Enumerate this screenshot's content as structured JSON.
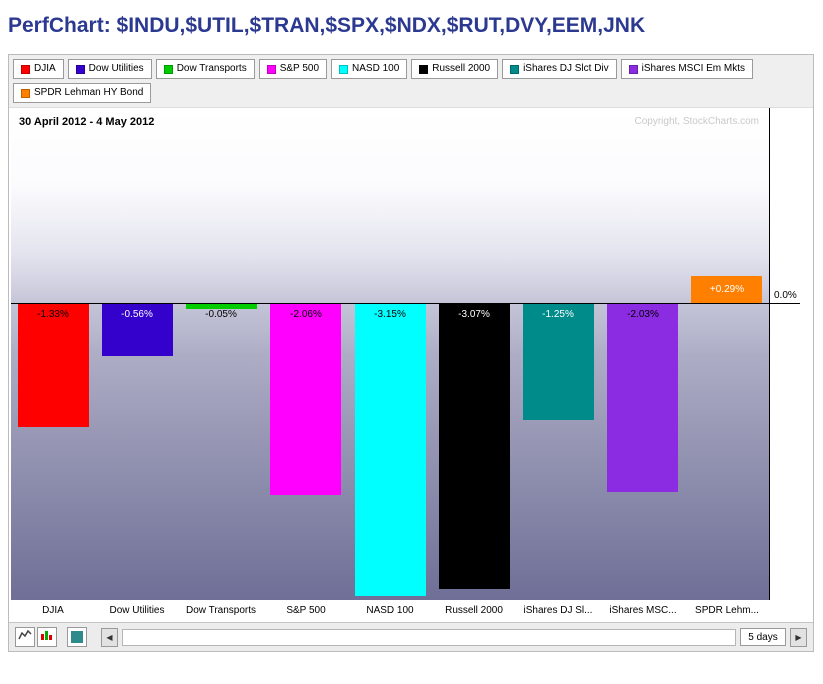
{
  "title": "PerfChart: $INDU,$UTIL,$TRAN,$SPX,$NDX,$RUT,DVY,EEM,JNK",
  "legend": {
    "items": [
      {
        "label": "DJIA",
        "color": "#FF0000"
      },
      {
        "label": "Dow Utilities",
        "color": "#3300CC"
      },
      {
        "label": "Dow Transports",
        "color": "#00CC00"
      },
      {
        "label": "S&P 500",
        "color": "#FF00FF"
      },
      {
        "label": "NASD 100",
        "color": "#00FFFF"
      },
      {
        "label": "Russell 2000",
        "color": "#000000"
      },
      {
        "label": "iShares DJ Slct Div",
        "color": "#008B8B"
      },
      {
        "label": "iShares MSCI Em Mkts",
        "color": "#8B2BE2"
      },
      {
        "label": "SPDR Lehman HY Bond",
        "color": "#FF8000"
      }
    ]
  },
  "chart": {
    "date_range": "30 April 2012 - 4 May 2012",
    "copyright": "Copyright, StockCharts.com",
    "zero_label": "0.0%"
  },
  "chart_data": {
    "type": "bar",
    "title": "PerfChart: $INDU,$UTIL,$TRAN,$SPX,$NDX,$RUT,DVY,EEM,JNK",
    "categories": [
      "DJIA",
      "Dow Utilities",
      "Dow Transports",
      "S&P 500",
      "NASD 100",
      "Russell 2000",
      "iShares DJ Slct Div",
      "iShares MSCI Em Mkts",
      "SPDR Lehman HY Bond"
    ],
    "x_tick_labels": [
      "DJIA",
      "Dow Utilities",
      "Dow Transports",
      "S&P 500",
      "NASD 100",
      "Russell 2000",
      "iShares DJ Sl...",
      "iShares MSC...",
      "SPDR Lehm..."
    ],
    "values": [
      -1.33,
      -0.56,
      -0.05,
      -2.06,
      -3.15,
      -3.07,
      -1.25,
      -2.03,
      0.29
    ],
    "value_labels": [
      "-1.33%",
      "-0.56%",
      "-0.05%",
      "-2.06%",
      "-3.15%",
      "-3.07%",
      "-1.25%",
      "-2.03%",
      "+0.29%"
    ],
    "colors": [
      "#FF0000",
      "#3300CC",
      "#00CC00",
      "#FF00FF",
      "#00FFFF",
      "#000000",
      "#008B8B",
      "#8B2BE2",
      "#FF8000"
    ],
    "label_text_colors": [
      "#000000",
      "#FFFFFF",
      "#000000",
      "#000000",
      "#000000",
      "#FFFFFF",
      "#FFFFFF",
      "#000000",
      "#FFFFFF"
    ],
    "ylabel": "",
    "xlabel": "",
    "ylim": [
      -3.2,
      2.1
    ],
    "zero_gridline_label": "0.0%",
    "grid": false,
    "legend_position": "top"
  },
  "toolbar": {
    "period_label": "5 days",
    "icons": [
      {
        "name": "line-view-icon"
      },
      {
        "name": "histogram-view-icon"
      },
      {
        "name": "color-swatch-icon",
        "color": "#2E8B8B"
      },
      {
        "name": "scroll-left-icon",
        "glyph": "◀"
      },
      {
        "name": "scroll-right-icon",
        "glyph": "▶"
      }
    ]
  }
}
